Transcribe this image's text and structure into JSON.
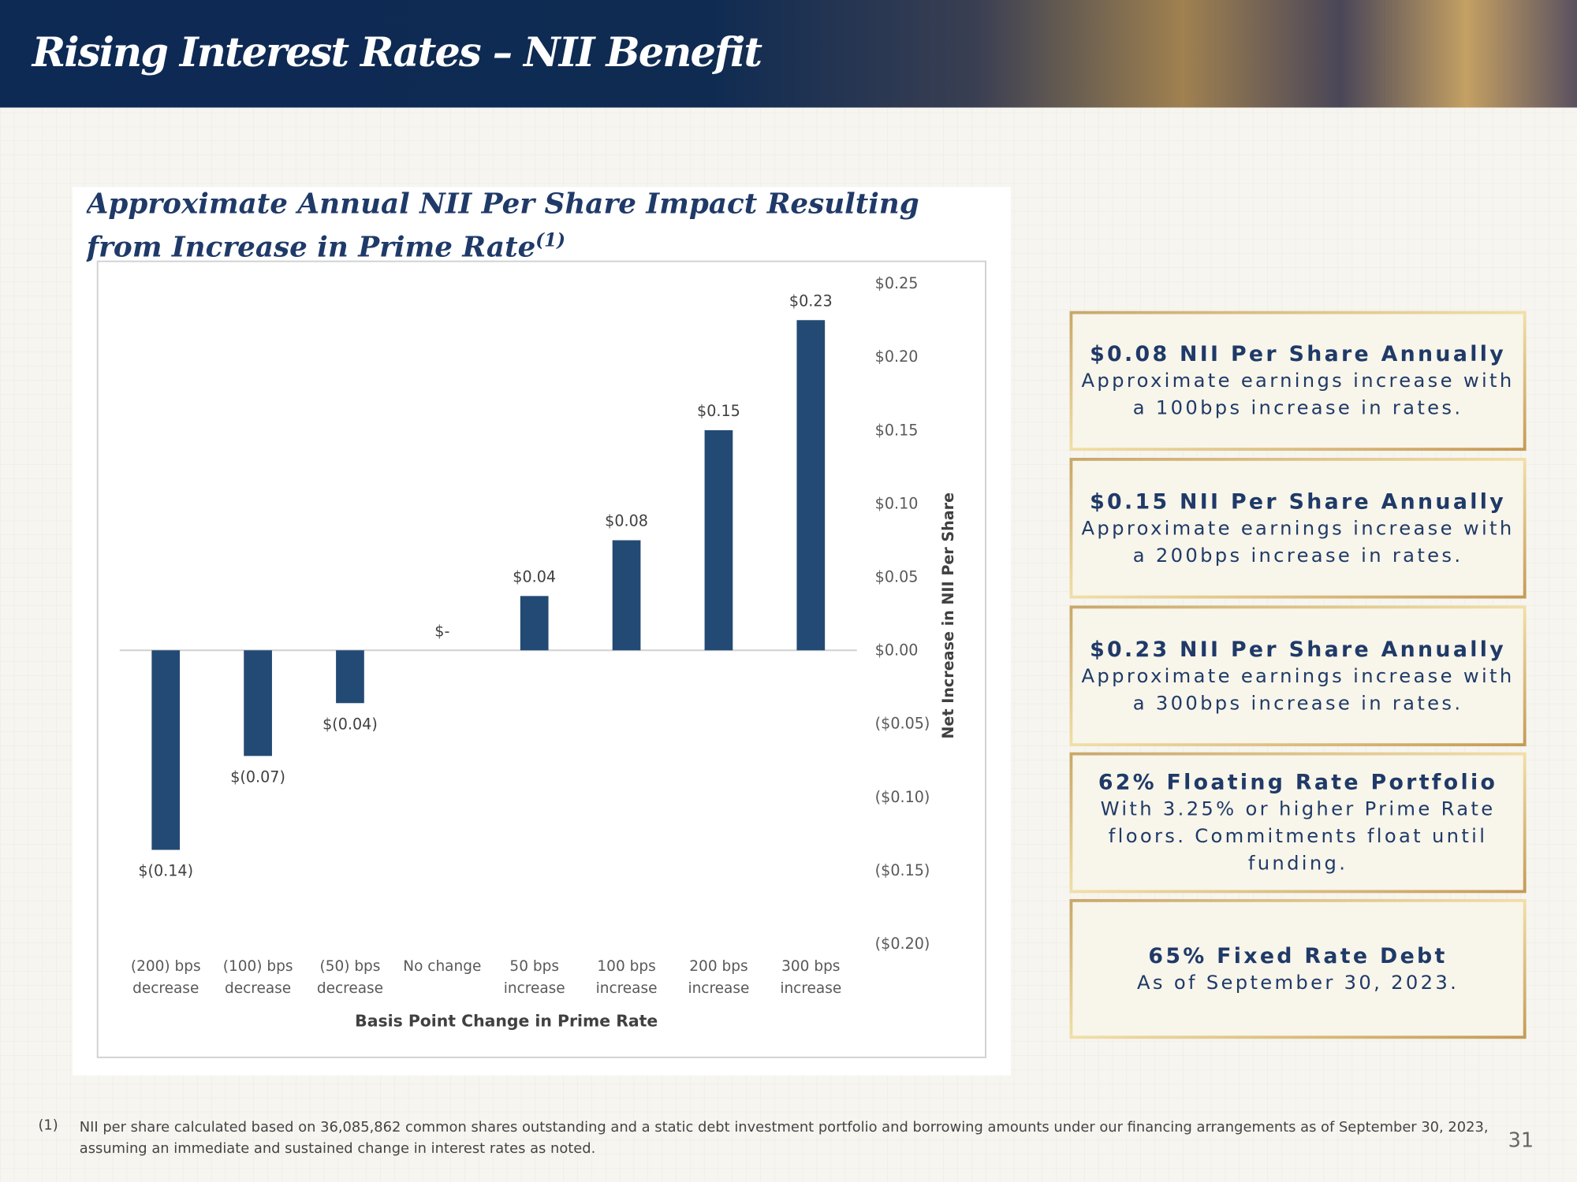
{
  "header": {
    "title": "Rising Interest Rates – NII Benefit"
  },
  "chart_data": {
    "type": "bar",
    "title": "Approximate Annual NII Per Share Impact Resulting from Increase in Prime Rate",
    "title_note": "(1)",
    "x_label": "Basis Point Change in Prime Rate",
    "y_label": "Net Increase in NII Per Share",
    "categories": [
      "(200) bps decrease",
      "(100) bps decrease",
      "(50) bps decrease",
      "No change",
      "50 bps increase",
      "100 bps increase",
      "200 bps increase",
      "300 bps increase"
    ],
    "values": [
      -0.136,
      -0.072,
      -0.036,
      0,
      0.037,
      0.075,
      0.15,
      0.225
    ],
    "value_labels": [
      "$(0.14)",
      "$(0.07)",
      "$(0.04)",
      "$-",
      "$0.04",
      "$0.08",
      "$0.15",
      "$0.23"
    ],
    "color": "#234a74",
    "ylim": [
      -0.2,
      0.25
    ],
    "yticks": [
      {
        "value": -0.2,
        "label": "($0.20)"
      },
      {
        "value": -0.15,
        "label": "($0.15)"
      },
      {
        "value": -0.1,
        "label": "($0.10)"
      },
      {
        "value": -0.05,
        "label": "($0.05)"
      },
      {
        "value": 0,
        "label": "$0.00"
      },
      {
        "value": 0.05,
        "label": "$0.05"
      },
      {
        "value": 0.1,
        "label": "$0.10"
      },
      {
        "value": 0.15,
        "label": "$0.15"
      },
      {
        "value": 0.2,
        "label": "$0.20"
      },
      {
        "value": 0.25,
        "label": "$0.25"
      }
    ],
    "y_axis_side": "right",
    "grid": false
  },
  "callouts": [
    {
      "heading": "$0.08 NII Per Share Annually",
      "text": "Approximate earnings increase with a 100bps increase in rates."
    },
    {
      "heading": "$0.15 NII Per Share Annually",
      "text": "Approximate earnings increase with a 200bps increase in rates."
    },
    {
      "heading": "$0.23 NII Per Share Annually",
      "text": "Approximate earnings increase with a 300bps increase in rates."
    },
    {
      "heading": "62% Floating Rate Portfolio",
      "text": "With 3.25% or higher Prime Rate floors. Commitments float until funding."
    },
    {
      "heading": "65% Fixed Rate Debt",
      "text": "As of September 30, 2023."
    }
  ],
  "footnote": {
    "marker": "(1)",
    "text": "NII per share calculated based on 36,085,862 common shares outstanding and a static debt investment portfolio and borrowing amounts under our financing arrangements as of September 30, 2023, assuming an immediate and sustained change in interest rates as noted."
  },
  "page_number": "31"
}
